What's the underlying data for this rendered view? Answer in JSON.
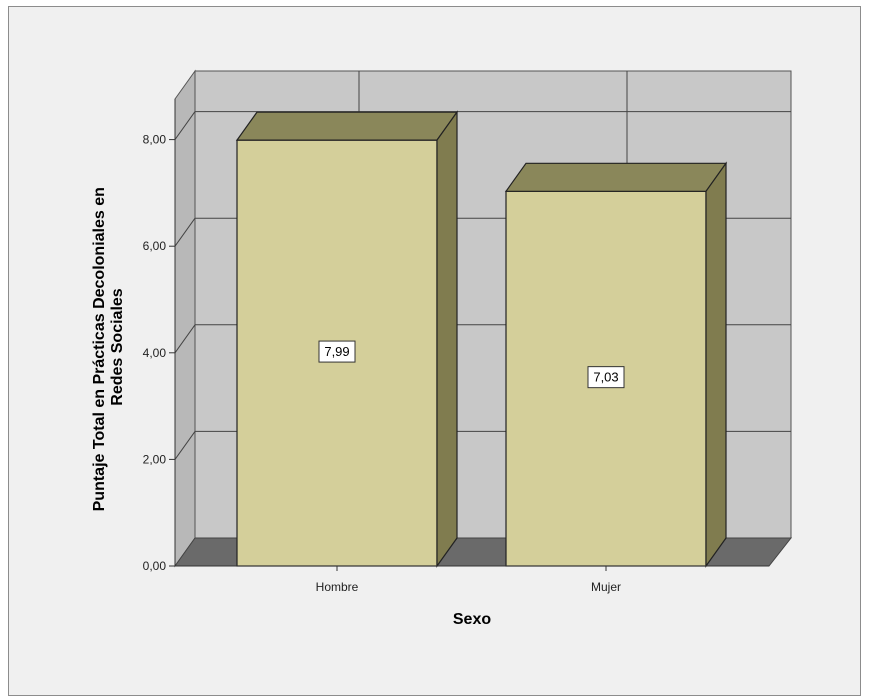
{
  "chart_data": {
    "type": "bar",
    "categories": [
      "Hombre",
      "Mujer"
    ],
    "values": [
      7.99,
      7.03
    ],
    "data_labels": [
      "7,99",
      "7,03"
    ],
    "xlabel": "Sexo",
    "ylabel_lines": [
      "Puntaje Total en Prácticas Decoloniales en",
      "Redes Sociales"
    ],
    "ylim": [
      0,
      8.8
    ],
    "yticks": [
      0,
      2,
      4,
      6,
      8
    ],
    "ytick_labels": [
      "0,00",
      "2,00",
      "4,00",
      "6,00",
      "8,00"
    ],
    "grid": true,
    "style": "3d",
    "colors": {
      "bar_front": "#d4cf9a",
      "bar_top": "#8a875a",
      "bar_side": "#807c4f",
      "back_wall": "#c8c8c8",
      "side_wall": "#b8b8b8",
      "floor": "#6a6a6a",
      "background": "#f0f0f0"
    }
  }
}
